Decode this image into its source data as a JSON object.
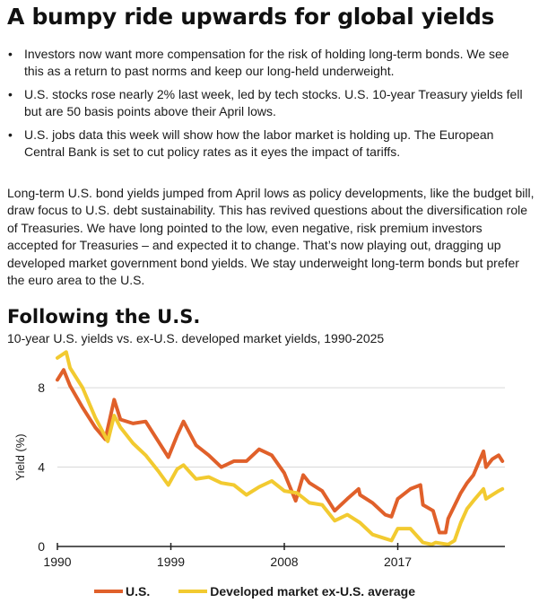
{
  "headline": "A bumpy ride upwards for global yields",
  "bullets": [
    "Investors now want more compensation for the risk of holding long-term bonds. We see this as a return to past norms and keep our long-held underweight.",
    "U.S. stocks rose nearly 2% last week, led by tech stocks. U.S. 10-year Treasury yields fell but are 50 basis points above their April lows.",
    "U.S. jobs data this week will show how the labor market is holding up. The European Central Bank is set to cut policy rates as it eyes the impact of tariffs."
  ],
  "bullet_symbol": "•",
  "paragraph": "Long-term U.S. bond yields jumped from April lows as policy developments, like the budget bill, draw focus to U.S. debt sustainability. This has revived questions about the diversification role of Treasuries. We have long pointed to the low, even negative, risk premium investors accepted for Treasuries – and expected it to change. That’s now playing out, dragging up developed market government bond yields. We stay underweight long-term bonds but prefer the euro area to the U.S.",
  "colors": {
    "us": "#e0602a",
    "dm": "#f2ca30",
    "grid": "#d9d9d9",
    "axis": "#222222"
  },
  "chart_data": {
    "type": "line",
    "title": "Following the U.S.",
    "subtitle": "10-year U.S. yields vs. ex-U.S. developed market yields, 1990-2025",
    "xlabel": "",
    "ylabel": "Yield (%)",
    "xlim": [
      1990,
      2025.5
    ],
    "ylim": [
      0,
      9
    ],
    "x_ticks": [
      1990,
      1999,
      2008,
      2017
    ],
    "y_ticks": [
      0,
      4,
      8
    ],
    "grid": true,
    "legend_position": "bottom",
    "series": [
      {
        "name": "U.S.",
        "color": "#e0602a",
        "x": [
          1990,
          1990.5,
          1991,
          1992,
          1993,
          1993.8,
          1994.5,
          1995,
          1996,
          1997,
          1998,
          1998.8,
          1999.5,
          2000,
          2001,
          2002,
          2003,
          2004,
          2005,
          2006,
          2007,
          2008,
          2008.9,
          2009.5,
          2010,
          2011,
          2012,
          2013,
          2013.9,
          2014,
          2015,
          2016,
          2016.5,
          2017,
          2018,
          2018.8,
          2019,
          2019.8,
          2020.3,
          2020.8,
          2021,
          2022,
          2022.5,
          2023,
          2023.8,
          2024,
          2024.5,
          2025,
          2025.3
        ],
        "y": [
          8.4,
          8.9,
          8.1,
          7.0,
          6.0,
          5.4,
          7.4,
          6.4,
          6.2,
          6.3,
          5.3,
          4.5,
          5.6,
          6.3,
          5.1,
          4.6,
          4.0,
          4.3,
          4.3,
          4.9,
          4.6,
          3.7,
          2.3,
          3.6,
          3.2,
          2.8,
          1.8,
          2.4,
          2.9,
          2.6,
          2.2,
          1.6,
          1.5,
          2.4,
          2.9,
          3.1,
          2.1,
          1.8,
          0.7,
          0.7,
          1.4,
          2.7,
          3.2,
          3.6,
          4.8,
          4.0,
          4.4,
          4.6,
          4.3
        ]
      },
      {
        "name": "Developed market ex-U.S. average",
        "color": "#f2ca30",
        "x": [
          1990,
          1990.7,
          1991,
          1992,
          1993,
          1994,
          1994.5,
          1995,
          1996,
          1997,
          1998,
          1998.8,
          1999.5,
          2000,
          2001,
          2002,
          2003,
          2004,
          2005,
          2006,
          2007,
          2008,
          2009,
          2010,
          2011,
          2012,
          2013,
          2014,
          2015,
          2016,
          2016.5,
          2017,
          2018,
          2019,
          2019.7,
          2020,
          2021,
          2021.5,
          2022,
          2022.5,
          2023,
          2023.8,
          2024,
          2025,
          2025.3
        ],
        "y": [
          9.5,
          9.8,
          9.0,
          8.0,
          6.5,
          5.3,
          6.6,
          6.0,
          5.2,
          4.6,
          3.8,
          3.1,
          3.9,
          4.1,
          3.4,
          3.5,
          3.2,
          3.1,
          2.6,
          3.0,
          3.3,
          2.8,
          2.7,
          2.2,
          2.1,
          1.3,
          1.6,
          1.2,
          0.6,
          0.4,
          0.3,
          0.9,
          0.9,
          0.2,
          0.1,
          0.2,
          0.1,
          0.3,
          1.2,
          1.9,
          2.3,
          2.9,
          2.4,
          2.8,
          2.9
        ]
      }
    ]
  }
}
